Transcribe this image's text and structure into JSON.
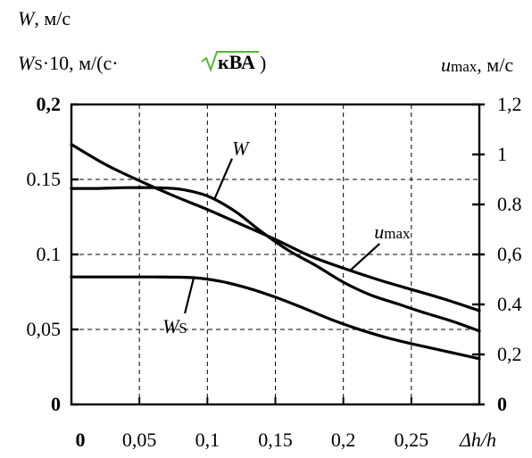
{
  "chart_data": {
    "type": "line",
    "left_axis_title_line1": {
      "var": "W",
      "unit": ", м/с"
    },
    "left_axis_title_line2": {
      "var": "W",
      "sub": "S",
      "mid": "·10, м/(с·",
      "root": "кВА",
      "end": ")"
    },
    "right_axis_title": {
      "var": "u",
      "sub": "max",
      "unit": ", м/с"
    },
    "x_axis_title": "Δh/h",
    "x_ticks": [
      "0",
      "0,05",
      "0,1",
      "0,15",
      "0,2",
      "0,25"
    ],
    "x_tick_values": [
      0,
      0.05,
      0.1,
      0.15,
      0.2,
      0.25
    ],
    "y_left_ticks": [
      "0",
      "0,05",
      "0.1",
      "0.15",
      "0,2"
    ],
    "y_left_tick_values": [
      0,
      0.05,
      0.1,
      0.15,
      0.2
    ],
    "y_right_ticks": [
      "0",
      "0,2",
      "0.4",
      "0,6",
      "0.8",
      "1",
      "1,2"
    ],
    "y_right_tick_values": [
      0,
      0.2,
      0.4,
      0.6,
      0.8,
      1.0,
      1.2
    ],
    "xlim": [
      0,
      0.3
    ],
    "ylim_left": [
      0,
      0.2
    ],
    "ylim_right": [
      0,
      1.2
    ],
    "grid": true,
    "series": [
      {
        "name": "W",
        "axis": "left",
        "points": [
          [
            0,
            0.144
          ],
          [
            0.02,
            0.144
          ],
          [
            0.04,
            0.1445
          ],
          [
            0.06,
            0.1445
          ],
          [
            0.08,
            0.1435
          ],
          [
            0.1,
            0.139
          ],
          [
            0.12,
            0.129
          ],
          [
            0.14,
            0.115
          ],
          [
            0.16,
            0.1025
          ],
          [
            0.18,
            0.0925
          ],
          [
            0.2,
            0.0815
          ],
          [
            0.22,
            0.073
          ],
          [
            0.24,
            0.067
          ],
          [
            0.26,
            0.061
          ],
          [
            0.28,
            0.0555
          ],
          [
            0.3,
            0.049
          ]
        ]
      },
      {
        "name": "u_max",
        "axis": "right",
        "points": [
          [
            0,
            1.04
          ],
          [
            0.025,
            0.96
          ],
          [
            0.05,
            0.895
          ],
          [
            0.075,
            0.835
          ],
          [
            0.1,
            0.78
          ],
          [
            0.125,
            0.72
          ],
          [
            0.15,
            0.66
          ],
          [
            0.175,
            0.595
          ],
          [
            0.2,
            0.545
          ],
          [
            0.225,
            0.5
          ],
          [
            0.25,
            0.46
          ],
          [
            0.275,
            0.42
          ],
          [
            0.3,
            0.375
          ]
        ]
      },
      {
        "name": "W_S",
        "axis": "left",
        "points": [
          [
            0,
            0.085
          ],
          [
            0.03,
            0.085
          ],
          [
            0.06,
            0.085
          ],
          [
            0.09,
            0.0845
          ],
          [
            0.11,
            0.082
          ],
          [
            0.13,
            0.0775
          ],
          [
            0.15,
            0.0715
          ],
          [
            0.17,
            0.0645
          ],
          [
            0.19,
            0.057
          ],
          [
            0.21,
            0.0505
          ],
          [
            0.23,
            0.045
          ],
          [
            0.25,
            0.0405
          ],
          [
            0.27,
            0.0365
          ],
          [
            0.29,
            0.0325
          ],
          [
            0.3,
            0.0305
          ]
        ]
      }
    ],
    "annotations": [
      {
        "text": "W",
        "series": "W"
      },
      {
        "text": "u",
        "sub": "max",
        "series": "u_max"
      },
      {
        "text": "W",
        "sub": "S",
        "series": "W_S"
      }
    ]
  }
}
